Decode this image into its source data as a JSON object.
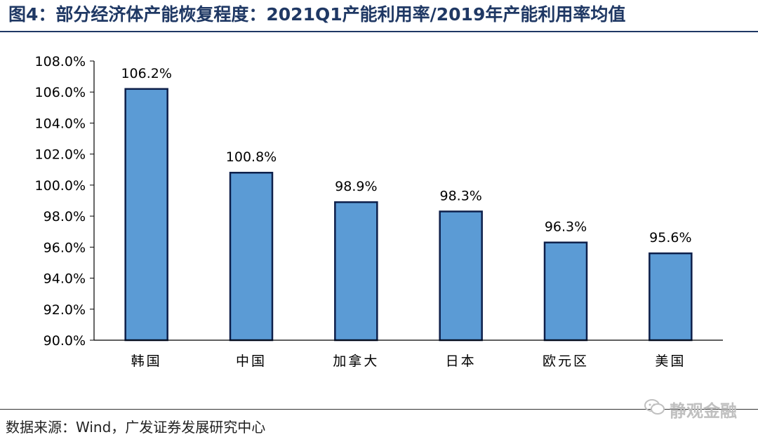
{
  "title": "图4：部分经济体产能恢复程度：2021Q1产能利用率/2019年产能利用率均值",
  "source": "数据来源：Wind，广发证券发展研究中心",
  "watermark": "静观金融",
  "watermark_icon": "wechat-icon",
  "colors": {
    "title": "#1f3864",
    "bar_fill": "#5b9bd5",
    "bar_stroke": "#0d1f4a"
  },
  "chart_data": {
    "type": "bar",
    "categories": [
      "韩国",
      "中国",
      "加拿大",
      "日本",
      "欧元区",
      "美国"
    ],
    "values": [
      106.2,
      100.8,
      98.9,
      98.3,
      96.3,
      95.6
    ],
    "value_labels": [
      "106.2%",
      "100.8%",
      "98.9%",
      "98.3%",
      "96.3%",
      "95.6%"
    ],
    "ylim": [
      90,
      108
    ],
    "yticks": [
      90,
      92,
      94,
      96,
      98,
      100,
      102,
      104,
      106,
      108
    ],
    "ytick_labels": [
      "90.0%",
      "92.0%",
      "94.0%",
      "96.0%",
      "98.0%",
      "100.0%",
      "102.0%",
      "104.0%",
      "106.0%",
      "108.0%"
    ],
    "grid": false,
    "legend": "none"
  }
}
